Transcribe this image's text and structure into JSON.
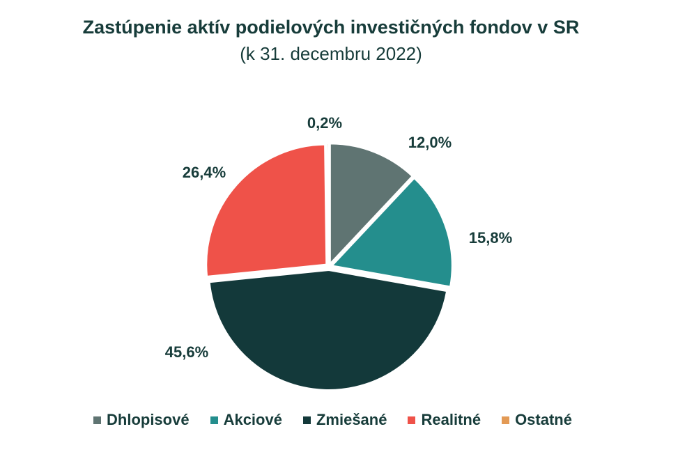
{
  "chart_data": {
    "type": "pie",
    "title": "Zastúpenie aktív podielových investičných fondov v SR",
    "subtitle": "(k 31. decembru 2022)",
    "legend_position": "bottom",
    "slices": [
      {
        "name": "Dhlopisové",
        "value": 12.0,
        "label": "12,0%",
        "color": "#5f7472"
      },
      {
        "name": "Akciové",
        "value": 15.8,
        "label": "15,8%",
        "color": "#248e8d"
      },
      {
        "name": "Zmiešané",
        "value": 45.6,
        "label": "45,6%",
        "color": "#13393a"
      },
      {
        "name": "Realitné",
        "value": 26.4,
        "label": "26,4%",
        "color": "#ef5249"
      },
      {
        "name": "Ostatné",
        "value": 0.2,
        "label": "0,2%",
        "color": "#e39a55"
      }
    ]
  }
}
